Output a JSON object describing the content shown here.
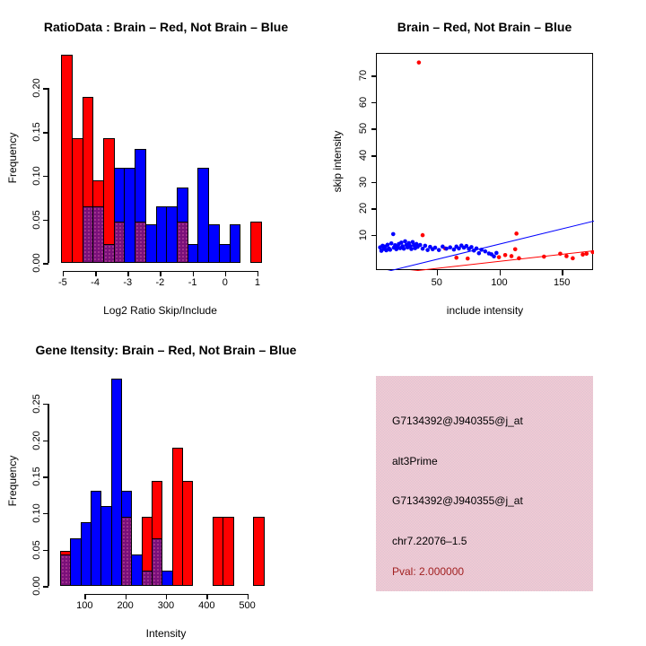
{
  "colors": {
    "red": "#ff0000",
    "blue": "#0000ff",
    "overlap": "#7a107a",
    "axis": "#000000",
    "pval_text": "#a12121",
    "info_bg": "#eec6d0"
  },
  "chart_data": [
    {
      "id": "ratio_hist",
      "type": "bar",
      "title": "RatioData : Brain – Red, Not Brain – Blue",
      "xlabel": "Log2 Ratio Skip/Include",
      "ylabel": "Frequency",
      "legend_note": "overlapping red+blue bins render purple",
      "bin_start": -5.05,
      "bin_width": 0.324,
      "series": [
        {
          "name": "Brain (red)",
          "color": "#ff0000",
          "values": [
            0.238,
            0.143,
            0.19,
            0.095,
            0.143,
            0.048,
            0,
            0.048,
            0,
            0,
            0,
            0.048,
            0,
            0,
            0,
            0,
            0,
            0,
            0.048
          ]
        },
        {
          "name": "Not Brain (blue)",
          "color": "#0000ff",
          "values": [
            0,
            0,
            0.065,
            0.065,
            0.022,
            0.109,
            0.109,
            0.131,
            0.044,
            0.065,
            0.065,
            0.086,
            0.022,
            0.109,
            0.044,
            0.022,
            0.044,
            0,
            0
          ]
        }
      ],
      "x_tick_values": [
        -5,
        -4,
        -3,
        -2,
        -1,
        0,
        1
      ],
      "x_tick_labels": [
        "-5",
        "-4",
        "-3",
        "-2",
        "-1",
        "0",
        "1"
      ],
      "y_tick_values": [
        0,
        0.05,
        0.1,
        0.15,
        0.2
      ],
      "y_tick_labels": [
        "0.00",
        "0.05",
        "0.10",
        "0.15",
        "0.20"
      ],
      "xlim": [
        -5.4,
        1.45
      ],
      "ylim": [
        0,
        0.24
      ],
      "grid": false
    },
    {
      "id": "scatter",
      "type": "scatter",
      "title": "Brain – Red, Not Brain – Blue",
      "xlabel": "include intensity",
      "ylabel": "skip intensity",
      "x_tick_values": [
        50,
        100,
        150
      ],
      "x_tick_labels": [
        "50",
        "100",
        "150"
      ],
      "y_tick_values": [
        10,
        20,
        30,
        40,
        50,
        60,
        70
      ],
      "y_tick_labels": [
        "10",
        "20",
        "30",
        "40",
        "50",
        "60",
        "70"
      ],
      "xlim": [
        1.6,
        175.5
      ],
      "ylim": [
        -3.3,
        78.5
      ],
      "grid": false,
      "series": [
        {
          "name": "Brain (red)",
          "color": "#ff0000",
          "points": [
            [
              35,
              75.3
            ],
            [
              38,
              10.2
            ],
            [
              56,
              5.2
            ],
            [
              65,
              1.7
            ],
            [
              74,
              1.4
            ],
            [
              99,
              1.9
            ],
            [
              104,
              2.7
            ],
            [
              109,
              2.3
            ],
            [
              112,
              4.9
            ],
            [
              113,
              10.8
            ],
            [
              115,
              1.5
            ],
            [
              135,
              2.1
            ],
            [
              148,
              3.2
            ],
            [
              153,
              2.3
            ],
            [
              158,
              1.5
            ],
            [
              166,
              2.9
            ],
            [
              169,
              3.2
            ],
            [
              174,
              3.8
            ]
          ]
        },
        {
          "name": "Not Brain (blue)",
          "color": "#0000ff",
          "points": [
            [
              4,
              5.6
            ],
            [
              5,
              4.3
            ],
            [
              6,
              6.2
            ],
            [
              7,
              5.0
            ],
            [
              8,
              5.9
            ],
            [
              9,
              4.5
            ],
            [
              10,
              6.6
            ],
            [
              11,
              5.2
            ],
            [
              12,
              4.7
            ],
            [
              13,
              7.1
            ],
            [
              14.5,
              10.6
            ],
            [
              15,
              5.5
            ],
            [
              16,
              6.4
            ],
            [
              17,
              4.9
            ],
            [
              18,
              5.8
            ],
            [
              19,
              6.9
            ],
            [
              20,
              5.3
            ],
            [
              21,
              7.4
            ],
            [
              22,
              6.0
            ],
            [
              23,
              5.1
            ],
            [
              24,
              7.9
            ],
            [
              25,
              6.5
            ],
            [
              26,
              5.6
            ],
            [
              27,
              7.2
            ],
            [
              28,
              6.1
            ],
            [
              29,
              5.0
            ],
            [
              30,
              7.6
            ],
            [
              31,
              6.4
            ],
            [
              32,
              5.3
            ],
            [
              33,
              6.9
            ],
            [
              34,
              5.8
            ],
            [
              36,
              6.5
            ],
            [
              38,
              5.1
            ],
            [
              40,
              6.2
            ],
            [
              42,
              4.6
            ],
            [
              44,
              5.8
            ],
            [
              46,
              4.9
            ],
            [
              48,
              5.5
            ],
            [
              51,
              4.6
            ],
            [
              54,
              5.9
            ],
            [
              57,
              5.1
            ],
            [
              60,
              5.6
            ],
            [
              63,
              4.8
            ],
            [
              65,
              5.9
            ],
            [
              67,
              5.2
            ],
            [
              69,
              6.3
            ],
            [
              71,
              5.5
            ],
            [
              73,
              6.1
            ],
            [
              75,
              5.0
            ],
            [
              77,
              5.7
            ],
            [
              79,
              4.4
            ],
            [
              81,
              5.2
            ],
            [
              83,
              3.4
            ],
            [
              85,
              4.7
            ],
            [
              88,
              4.1
            ],
            [
              91,
              3.3
            ],
            [
              93,
              3.0
            ],
            [
              95,
              2.2
            ],
            [
              97,
              3.5
            ]
          ]
        }
      ],
      "fit_lines": [
        {
          "name": "blue-fit",
          "color": "#0000ff",
          "x1": 0,
          "y1": -4.6,
          "x2": 178,
          "y2": 15.87
        },
        {
          "name": "red-fit",
          "color": "#ff0000",
          "x1": 0,
          "y1": -4.94,
          "x2": 178,
          "y2": 4.49
        }
      ]
    },
    {
      "id": "gene_hist",
      "type": "bar",
      "title": "Gene Itensity: Brain – Red, Not Brain – Blue",
      "xlabel": "Intensity",
      "ylabel": "Frequency",
      "legend_note": "overlapping red+blue bins render purple",
      "bin_start": 40,
      "bin_width": 25,
      "series": [
        {
          "name": "Brain (red)",
          "color": "#ff0000",
          "values": [
            0.048,
            0,
            0,
            0,
            0,
            0,
            0.095,
            0,
            0.095,
            0.144,
            0,
            0.19,
            0.144,
            0,
            0,
            0.095,
            0.095,
            0,
            0,
            0.095
          ]
        },
        {
          "name": "Not Brain (blue)",
          "color": "#0000ff",
          "values": [
            0.043,
            0.066,
            0.087,
            0.131,
            0.11,
            0.284,
            0.131,
            0.043,
            0.021,
            0.066,
            0.021,
            0,
            0,
            0,
            0,
            0,
            0,
            0,
            0,
            0
          ]
        }
      ],
      "x_tick_values": [
        100,
        200,
        300,
        400,
        500
      ],
      "x_tick_labels": [
        "100",
        "200",
        "300",
        "400",
        "500"
      ],
      "y_tick_values": [
        0,
        0.05,
        0.1,
        0.15,
        0.2,
        0.25
      ],
      "y_tick_labels": [
        "0.00",
        "0.05",
        "0.10",
        "0.15",
        "0.20",
        "0.25"
      ],
      "xlim": [
        38,
        542
      ],
      "ylim": [
        0,
        0.285
      ],
      "grid": false
    }
  ],
  "info_panel": {
    "lines": [
      {
        "text": "G7134392@J940355@j_at",
        "color": "#000000"
      },
      {
        "text": "alt3Prime",
        "color": "#000000"
      },
      {
        "text": "G7134392@J940355@j_at",
        "color": "#000000"
      },
      {
        "text": "chr7.22076–1.5",
        "color": "#000000"
      },
      {
        "text": "Pval: 2.000000",
        "color": "#a12121"
      }
    ]
  }
}
